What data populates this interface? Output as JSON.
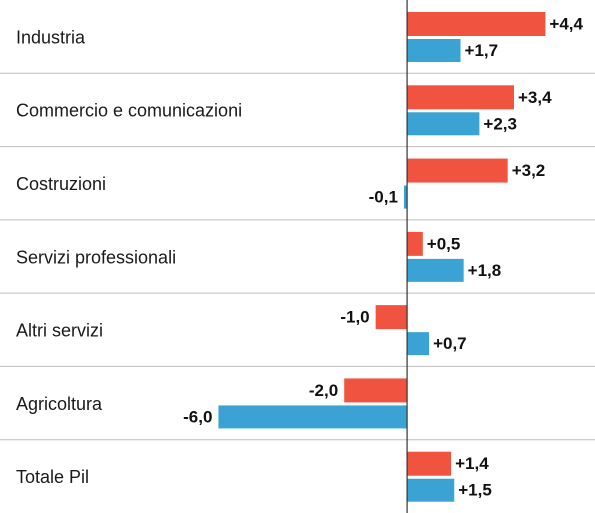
{
  "chart_data": {
    "type": "hbar",
    "categories": [
      "Industria",
      "Commercio e comunicazioni",
      "Costruzioni",
      "Servizi professionali",
      "Altri servizi",
      "Agricoltura",
      "Totale Pil"
    ],
    "series": [
      {
        "color": "#f0533f",
        "values": [
          4.4,
          3.4,
          3.2,
          0.5,
          -1.0,
          -2.0,
          1.4
        ],
        "value_labels": [
          "+4,4",
          "+3,4",
          "+3,2",
          "+0,5",
          "-1,0",
          "-2,0",
          "+1,4"
        ]
      },
      {
        "color": "#3aa3d4",
        "values": [
          1.7,
          2.3,
          -0.1,
          1.8,
          0.7,
          -6.0,
          1.5
        ],
        "value_labels": [
          "+1,7",
          "+2,3",
          "-0,1",
          "+1,8",
          "+0,7",
          "-6,0",
          "+1,5"
        ]
      }
    ],
    "xlim": [
      -7,
      5.5
    ]
  }
}
